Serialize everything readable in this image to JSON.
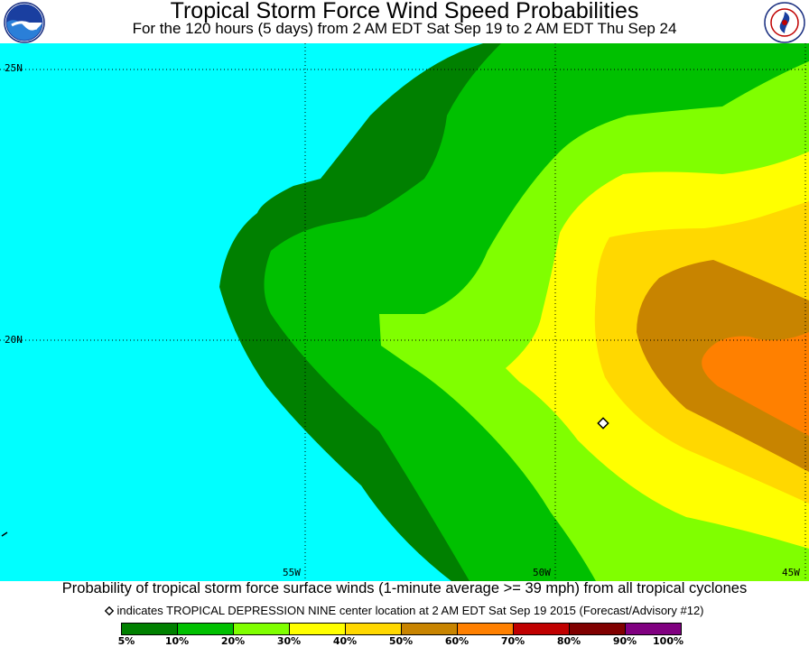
{
  "header": {
    "title": "Tropical Storm Force Wind Speed Probabilities",
    "subtitle": "For the 120 hours (5 days) from 2 AM EDT Sat Sep 19 to 2 AM EDT Thu Sep 24"
  },
  "map": {
    "lat_labels": [
      "25N",
      "20N"
    ],
    "lon_labels": [
      "55W",
      "50W",
      "45W"
    ],
    "colors": {
      "background": "#00ffff",
      "p5": "#008000",
      "p10": "#00c000",
      "p20": "#80ff00",
      "p30": "#ffff00",
      "p40": "#ffd800",
      "p50": "#c88400",
      "p60": "#ff8000",
      "p70": "#c00000",
      "p80": "#800000",
      "p90": "#800080"
    },
    "center_marker": "diamond-icon"
  },
  "footer": {
    "caption": "Probability of tropical storm force surface winds (1-minute average >= 39 mph) from all tropical cyclones",
    "note": "indicates TROPICAL DEPRESSION NINE center location at 2 AM EDT Sat Sep 19 2015 (Forecast/Advisory #12)"
  },
  "legend": {
    "labels": [
      "5%",
      "10%",
      "20%",
      "30%",
      "40%",
      "50%",
      "60%",
      "70%",
      "80%",
      "90%",
      "100%"
    ],
    "colors": [
      "#008000",
      "#00c000",
      "#80ff00",
      "#ffff00",
      "#ffd800",
      "#c88400",
      "#ff8000",
      "#c00000",
      "#800000",
      "#800080"
    ]
  }
}
